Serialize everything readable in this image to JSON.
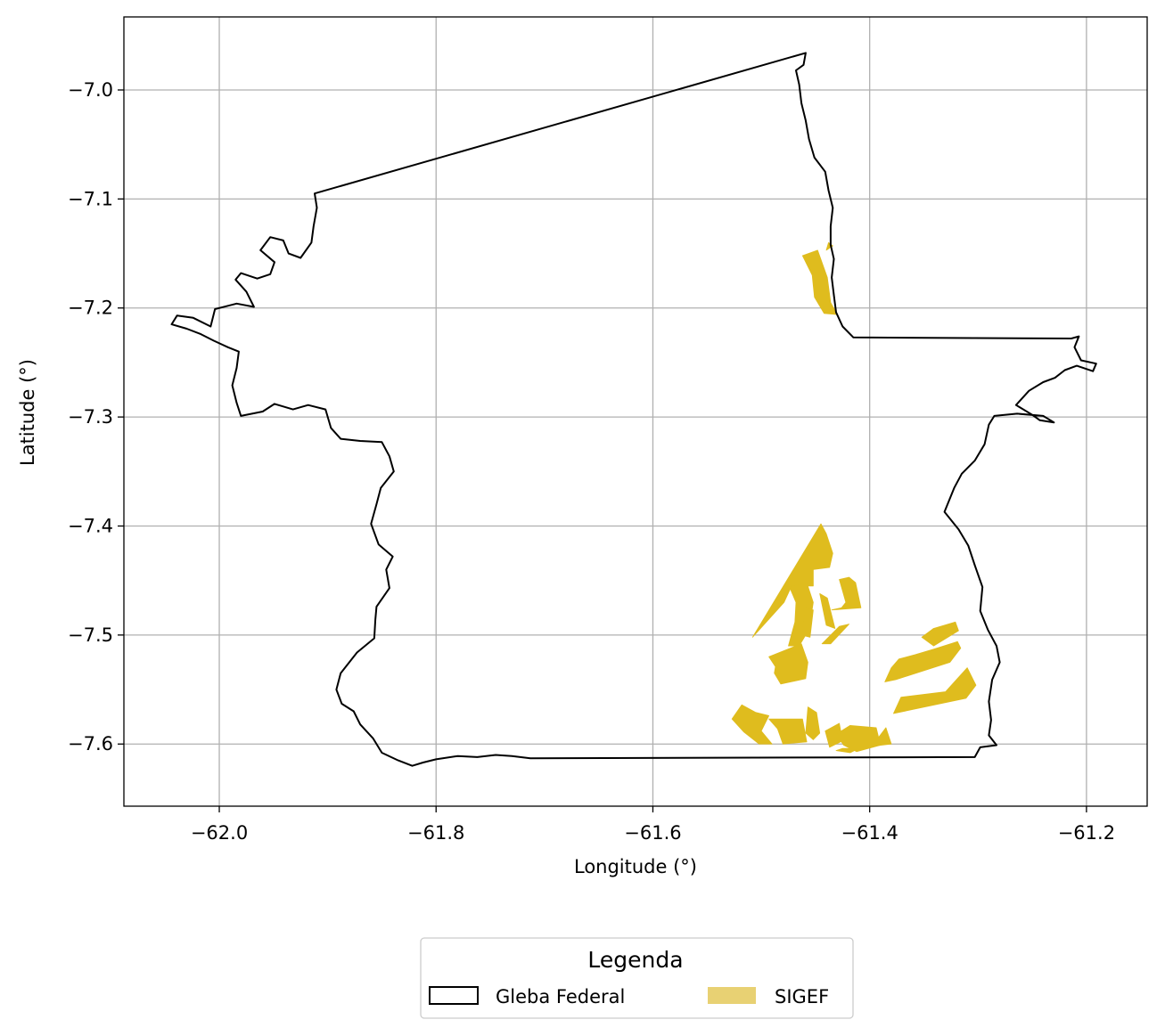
{
  "colors": {
    "boundary": "#000000",
    "sigef": "#dfbc1e",
    "sigef_legend": "#e8d173",
    "grid": "#b0b0b0"
  },
  "axes": {
    "xlabel": "Longitude (°)",
    "ylabel": "Latitude (°)"
  },
  "legend": {
    "title": "Legenda",
    "items": [
      {
        "label": "Gleba Federal",
        "style": "outline"
      },
      {
        "label": "SIGEF",
        "style": "filled"
      }
    ]
  },
  "chart_data": {
    "type": "map",
    "grid": true,
    "legend_position": "bottom-center",
    "xlim": [
      -62.088,
      -61.144
    ],
    "ylim": [
      -7.657,
      -6.933
    ],
    "xticks": [
      {
        "value": -62.0,
        "label": "−62.0"
      },
      {
        "value": -61.8,
        "label": "−61.8"
      },
      {
        "value": -61.6,
        "label": "−61.6"
      },
      {
        "value": -61.4,
        "label": "−61.4"
      },
      {
        "value": -61.2,
        "label": "−61.2"
      }
    ],
    "yticks": [
      {
        "value": -7.0,
        "label": "−7.0"
      },
      {
        "value": -7.1,
        "label": "−7.1"
      },
      {
        "value": -7.2,
        "label": "−7.2"
      },
      {
        "value": -7.3,
        "label": "−7.3"
      },
      {
        "value": -7.4,
        "label": "−7.4"
      },
      {
        "value": -7.5,
        "label": "−7.5"
      },
      {
        "value": -7.6,
        "label": "−7.6"
      }
    ],
    "gleba_federal": [
      [
        -61.912,
        -7.095
      ],
      [
        -61.459,
        -6.966
      ],
      [
        -61.461,
        -6.977
      ],
      [
        -61.468,
        -6.982
      ],
      [
        -61.465,
        -6.995
      ],
      [
        -61.463,
        -7.012
      ],
      [
        -61.459,
        -7.028
      ],
      [
        -61.456,
        -7.045
      ],
      [
        -61.451,
        -7.062
      ],
      [
        -61.441,
        -7.075
      ],
      [
        -61.438,
        -7.092
      ],
      [
        -61.434,
        -7.108
      ],
      [
        -61.436,
        -7.125
      ],
      [
        -61.436,
        -7.142
      ],
      [
        -61.433,
        -7.155
      ],
      [
        -61.435,
        -7.172
      ],
      [
        -61.433,
        -7.188
      ],
      [
        -61.431,
        -7.204
      ],
      [
        -61.425,
        -7.217
      ],
      [
        -61.415,
        -7.227
      ],
      [
        -61.214,
        -7.228
      ],
      [
        -61.207,
        -7.226
      ],
      [
        -61.211,
        -7.236
      ],
      [
        -61.205,
        -7.248
      ],
      [
        -61.191,
        -7.251
      ],
      [
        -61.194,
        -7.258
      ],
      [
        -61.209,
        -7.253
      ],
      [
        -61.22,
        -7.257
      ],
      [
        -61.229,
        -7.264
      ],
      [
        -61.24,
        -7.268
      ],
      [
        -61.253,
        -7.276
      ],
      [
        -61.265,
        -7.289
      ],
      [
        -61.25,
        -7.298
      ],
      [
        -61.243,
        -7.303
      ],
      [
        -61.23,
        -7.305
      ],
      [
        -61.24,
        -7.299
      ],
      [
        -61.264,
        -7.297
      ],
      [
        -61.285,
        -7.299
      ],
      [
        -61.29,
        -7.307
      ],
      [
        -61.294,
        -7.325
      ],
      [
        -61.303,
        -7.34
      ],
      [
        -61.315,
        -7.352
      ],
      [
        -61.322,
        -7.365
      ],
      [
        -61.331,
        -7.387
      ],
      [
        -61.318,
        -7.403
      ],
      [
        -61.309,
        -7.418
      ],
      [
        -61.303,
        -7.436
      ],
      [
        -61.296,
        -7.456
      ],
      [
        -61.298,
        -7.478
      ],
      [
        -61.291,
        -7.495
      ],
      [
        -61.283,
        -7.51
      ],
      [
        -61.28,
        -7.525
      ],
      [
        -61.287,
        -7.541
      ],
      [
        -61.29,
        -7.561
      ],
      [
        -61.288,
        -7.578
      ],
      [
        -61.29,
        -7.592
      ],
      [
        -61.283,
        -7.601
      ],
      [
        -61.298,
        -7.603
      ],
      [
        -61.303,
        -7.612
      ],
      [
        -61.713,
        -7.613
      ],
      [
        -61.73,
        -7.611
      ],
      [
        -61.745,
        -7.61
      ],
      [
        -61.762,
        -7.612
      ],
      [
        -61.78,
        -7.611
      ],
      [
        -61.8,
        -7.614
      ],
      [
        -61.812,
        -7.617
      ],
      [
        -61.822,
        -7.62
      ],
      [
        -61.835,
        -7.615
      ],
      [
        -61.85,
        -7.608
      ],
      [
        -61.858,
        -7.595
      ],
      [
        -61.87,
        -7.582
      ],
      [
        -61.876,
        -7.57
      ],
      [
        -61.887,
        -7.563
      ],
      [
        -61.892,
        -7.55
      ],
      [
        -61.888,
        -7.535
      ],
      [
        -61.873,
        -7.516
      ],
      [
        -61.857,
        -7.503
      ],
      [
        -61.856,
        -7.486
      ],
      [
        -61.855,
        -7.474
      ],
      [
        -61.843,
        -7.457
      ],
      [
        -61.846,
        -7.44
      ],
      [
        -61.84,
        -7.428
      ],
      [
        -61.853,
        -7.417
      ],
      [
        -61.86,
        -7.398
      ],
      [
        -61.855,
        -7.38
      ],
      [
        -61.851,
        -7.365
      ],
      [
        -61.839,
        -7.35
      ],
      [
        -61.843,
        -7.336
      ],
      [
        -61.85,
        -7.323
      ],
      [
        -61.87,
        -7.322
      ],
      [
        -61.888,
        -7.32
      ],
      [
        -61.897,
        -7.31
      ],
      [
        -61.902,
        -7.293
      ],
      [
        -61.918,
        -7.289
      ],
      [
        -61.932,
        -7.293
      ],
      [
        -61.949,
        -7.288
      ],
      [
        -61.96,
        -7.295
      ],
      [
        -61.98,
        -7.299
      ],
      [
        -61.984,
        -7.287
      ],
      [
        -61.988,
        -7.271
      ],
      [
        -61.984,
        -7.255
      ],
      [
        -61.982,
        -7.24
      ],
      [
        -61.992,
        -7.236
      ],
      [
        -62.005,
        -7.23
      ],
      [
        -62.017,
        -7.224
      ],
      [
        -62.03,
        -7.219
      ],
      [
        -62.044,
        -7.215
      ],
      [
        -62.039,
        -7.207
      ],
      [
        -62.024,
        -7.209
      ],
      [
        -62.008,
        -7.217
      ],
      [
        -62.004,
        -7.201
      ],
      [
        -61.984,
        -7.196
      ],
      [
        -61.968,
        -7.199
      ],
      [
        -61.975,
        -7.185
      ],
      [
        -61.985,
        -7.174
      ],
      [
        -61.98,
        -7.168
      ],
      [
        -61.965,
        -7.173
      ],
      [
        -61.953,
        -7.169
      ],
      [
        -61.949,
        -7.158
      ],
      [
        -61.962,
        -7.147
      ],
      [
        -61.953,
        -7.135
      ],
      [
        -61.941,
        -7.138
      ],
      [
        -61.936,
        -7.15
      ],
      [
        -61.925,
        -7.154
      ],
      [
        -61.915,
        -7.14
      ],
      [
        -61.913,
        -7.125
      ],
      [
        -61.91,
        -7.108
      ],
      [
        -61.912,
        -7.095
      ]
    ],
    "sigef": [
      [
        [
          -61.462,
          -7.152
        ],
        [
          -61.448,
          -7.147
        ],
        [
          -61.439,
          -7.172
        ],
        [
          -61.436,
          -7.195
        ],
        [
          -61.43,
          -7.206
        ],
        [
          -61.442,
          -7.205
        ],
        [
          -61.451,
          -7.19
        ],
        [
          -61.453,
          -7.17
        ]
      ],
      [
        [
          -61.44,
          -7.147
        ],
        [
          -61.434,
          -7.143
        ],
        [
          -61.438,
          -7.14
        ]
      ],
      [
        [
          -61.445,
          -7.398
        ],
        [
          -61.44,
          -7.407
        ],
        [
          -61.434,
          -7.425
        ],
        [
          -61.437,
          -7.438
        ],
        [
          -61.452,
          -7.44
        ],
        [
          -61.452,
          -7.455
        ],
        [
          -61.472,
          -7.455
        ],
        [
          -61.479,
          -7.47
        ],
        [
          -61.488,
          -7.48
        ],
        [
          -61.508,
          -7.502
        ]
      ],
      [
        [
          -61.474,
          -7.456
        ],
        [
          -61.458,
          -7.452
        ],
        [
          -61.452,
          -7.47
        ],
        [
          -61.456,
          -7.495
        ],
        [
          -61.465,
          -7.51
        ],
        [
          -61.475,
          -7.51
        ],
        [
          -61.469,
          -7.488
        ],
        [
          -61.468,
          -7.47
        ]
      ],
      [
        [
          -61.452,
          -7.477
        ],
        [
          -61.459,
          -7.475
        ],
        [
          -61.463,
          -7.5
        ],
        [
          -61.455,
          -7.502
        ]
      ],
      [
        [
          -61.493,
          -7.52
        ],
        [
          -61.463,
          -7.508
        ],
        [
          -61.457,
          -7.525
        ],
        [
          -61.459,
          -7.54
        ],
        [
          -61.482,
          -7.545
        ],
        [
          -61.488,
          -7.535
        ],
        [
          -61.487,
          -7.529
        ]
      ],
      [
        [
          -61.422,
          -7.47
        ],
        [
          -61.426,
          -7.475
        ],
        [
          -61.435,
          -7.477
        ],
        [
          -61.408,
          -7.475
        ],
        [
          -61.413,
          -7.452
        ],
        [
          -61.419,
          -7.447
        ],
        [
          -61.428,
          -7.449
        ]
      ],
      [
        [
          -61.439,
          -7.466
        ],
        [
          -61.446,
          -7.462
        ],
        [
          -61.44,
          -7.491
        ],
        [
          -61.432,
          -7.494
        ]
      ],
      [
        [
          -61.428,
          -7.492
        ],
        [
          -61.419,
          -7.49
        ],
        [
          -61.436,
          -7.508
        ],
        [
          -61.444,
          -7.508
        ]
      ],
      [
        [
          -61.386,
          -7.543
        ],
        [
          -61.376,
          -7.541
        ],
        [
          -61.326,
          -7.525
        ],
        [
          -61.316,
          -7.512
        ],
        [
          -61.319,
          -7.506
        ],
        [
          -61.341,
          -7.513
        ],
        [
          -61.358,
          -7.518
        ],
        [
          -61.373,
          -7.522
        ],
        [
          -61.38,
          -7.53
        ]
      ],
      [
        [
          -61.341,
          -7.51
        ],
        [
          -61.318,
          -7.496
        ],
        [
          -61.321,
          -7.488
        ],
        [
          -61.341,
          -7.494
        ],
        [
          -61.352,
          -7.502
        ]
      ],
      [
        [
          -61.31,
          -7.53
        ],
        [
          -61.33,
          -7.552
        ],
        [
          -61.371,
          -7.557
        ],
        [
          -61.378,
          -7.572
        ],
        [
          -61.311,
          -7.558
        ],
        [
          -61.302,
          -7.546
        ]
      ],
      [
        [
          -61.518,
          -7.564
        ],
        [
          -61.505,
          -7.571
        ],
        [
          -61.493,
          -7.574
        ],
        [
          -61.5,
          -7.588
        ],
        [
          -61.49,
          -7.6
        ],
        [
          -61.502,
          -7.6
        ],
        [
          -61.516,
          -7.589
        ],
        [
          -61.527,
          -7.577
        ]
      ],
      [
        [
          -61.493,
          -7.577
        ],
        [
          -61.462,
          -7.577
        ],
        [
          -61.458,
          -7.598
        ],
        [
          -61.48,
          -7.6
        ],
        [
          -61.485,
          -7.586
        ]
      ],
      [
        [
          -61.457,
          -7.566
        ],
        [
          -61.449,
          -7.571
        ],
        [
          -61.446,
          -7.59
        ],
        [
          -61.452,
          -7.596
        ],
        [
          -61.459,
          -7.59
        ]
      ],
      [
        [
          -61.441,
          -7.588
        ],
        [
          -61.428,
          -7.581
        ],
        [
          -61.425,
          -7.597
        ],
        [
          -61.437,
          -7.603
        ]
      ],
      [
        [
          -61.431,
          -7.591
        ],
        [
          -61.424,
          -7.601
        ],
        [
          -61.412,
          -7.607
        ],
        [
          -61.39,
          -7.601
        ],
        [
          -61.394,
          -7.585
        ],
        [
          -61.418,
          -7.583
        ]
      ],
      [
        [
          -61.398,
          -7.602
        ],
        [
          -61.38,
          -7.6
        ],
        [
          -61.385,
          -7.585
        ]
      ],
      [
        [
          -61.431,
          -7.606
        ],
        [
          -61.418,
          -7.608
        ],
        [
          -61.41,
          -7.604
        ],
        [
          -61.425,
          -7.604
        ]
      ]
    ]
  }
}
